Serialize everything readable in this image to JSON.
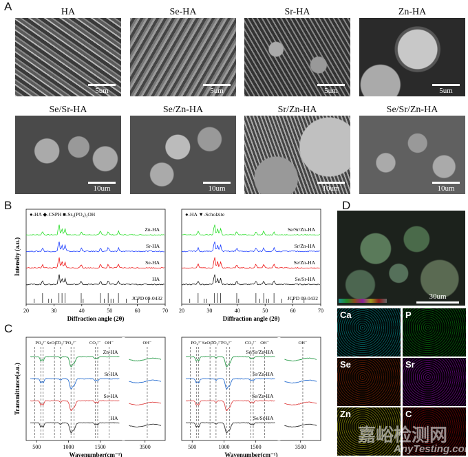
{
  "panels": {
    "A": "A",
    "B": "B",
    "C": "C",
    "D": "D"
  },
  "sem_images": [
    {
      "title": "HA",
      "scale": "5um"
    },
    {
      "title": "Se-HA",
      "scale": "5um"
    },
    {
      "title": "Sr-HA",
      "scale": "5um"
    },
    {
      "title": "Zn-HA",
      "scale": "5um"
    },
    {
      "title": "Se/Sr-HA",
      "scale": "10um"
    },
    {
      "title": "Se/Zn-HA",
      "scale": "10um"
    },
    {
      "title": "Sr/Zn-HA",
      "scale": "10um"
    },
    {
      "title": "Se/Sr/Zn-HA",
      "scale": "10um"
    }
  ],
  "xrd_left": {
    "legend": "●-HA  ◆-CSPH  ■-Sr₅(PO₄)₃OH",
    "series": [
      {
        "name": "Zn-HA",
        "color": "#22dd22"
      },
      {
        "name": "Sr-HA",
        "color": "#1a3cff"
      },
      {
        "name": "Se-HA",
        "color": "#ee1111"
      },
      {
        "name": "HA",
        "color": "#111111"
      }
    ],
    "reference": "JCPD 09-0432",
    "xlabel": "Diffraction angle (2θ)",
    "ylabel": "Intensity (a.u.)",
    "xticks": [
      "20",
      "30",
      "40",
      "50",
      "60",
      "70"
    ]
  },
  "xrd_right": {
    "legend": "●-HA        ▼-Scholzite",
    "series": [
      {
        "name": "Se/Sr/Zn-HA",
        "color": "#22dd22"
      },
      {
        "name": "Sr/Zn-HA",
        "color": "#1a3cff"
      },
      {
        "name": "Se/Zn-HA",
        "color": "#ee1111"
      },
      {
        "name": "Se/Sr-HA",
        "color": "#111111"
      }
    ],
    "reference": "JCPD 09-0432",
    "xlabel": "Diffraction angle (2θ)",
    "xticks": [
      "20",
      "30",
      "40",
      "50",
      "60",
      "70"
    ]
  },
  "ftir_left": {
    "series": [
      {
        "name": "Zn-HA",
        "color": "#2e9e4e"
      },
      {
        "name": "Sr-HA",
        "color": "#2a6fd0"
      },
      {
        "name": "Se-HA",
        "color": "#e04848"
      },
      {
        "name": "HA",
        "color": "#333333"
      }
    ],
    "band_labels": [
      "PO₄³⁻",
      "SeO₃²⁻",
      "CO₃²⁻",
      "PO₄³⁻",
      "CO₃²⁻",
      "OH⁻",
      "OH⁻"
    ],
    "xlabel": "Wavenumber(cm⁻¹)",
    "ylabel": "Transmittance(a.u.)",
    "xticks": [
      "500",
      "1000",
      "1500",
      "3500"
    ]
  },
  "ftir_right": {
    "series": [
      {
        "name": "Se/Sr/Zn-HA",
        "color": "#2e9e4e"
      },
      {
        "name": "Sr/Zn-HA",
        "color": "#2a6fd0"
      },
      {
        "name": "Se/Zn-HA",
        "color": "#e04848"
      },
      {
        "name": "Se/Sr-HA",
        "color": "#333333"
      }
    ],
    "band_labels": [
      "PO₄³⁻",
      "SeO₃²⁻",
      "CO₃²⁻",
      "PO₄³⁻",
      "CO₃²⁻",
      "OH⁻",
      "OH⁻"
    ],
    "xlabel": "Wavenumber(cm⁻¹)",
    "xticks": [
      "500",
      "1000",
      "1500",
      "3500"
    ]
  },
  "eds": {
    "scale": "30um",
    "maps": [
      {
        "element": "Ca",
        "color": "#1e8f8f"
      },
      {
        "element": "P",
        "color": "#1f8a2a"
      },
      {
        "element": "Se",
        "color": "#8a4a1a"
      },
      {
        "element": "Sr",
        "color": "#8a1f9a"
      },
      {
        "element": "Zn",
        "color": "#9a9a1e"
      },
      {
        "element": "C",
        "color": "#8a1a1a"
      }
    ]
  },
  "watermark": {
    "cn": "嘉峪检测网",
    "en": "AnyTesting.com"
  }
}
